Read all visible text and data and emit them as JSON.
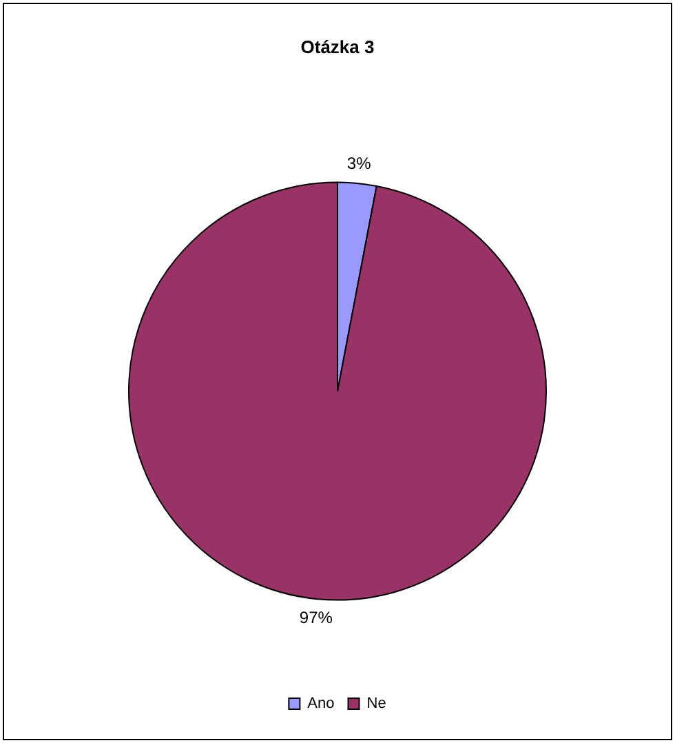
{
  "chart_data": {
    "type": "pie",
    "title": "Otázka 3",
    "categories": [
      "Ano",
      "Ne"
    ],
    "values": [
      3,
      97
    ],
    "colors": [
      "#9999ff",
      "#993366"
    ],
    "value_labels": [
      "3%",
      "97%"
    ],
    "legend": "bottom"
  }
}
